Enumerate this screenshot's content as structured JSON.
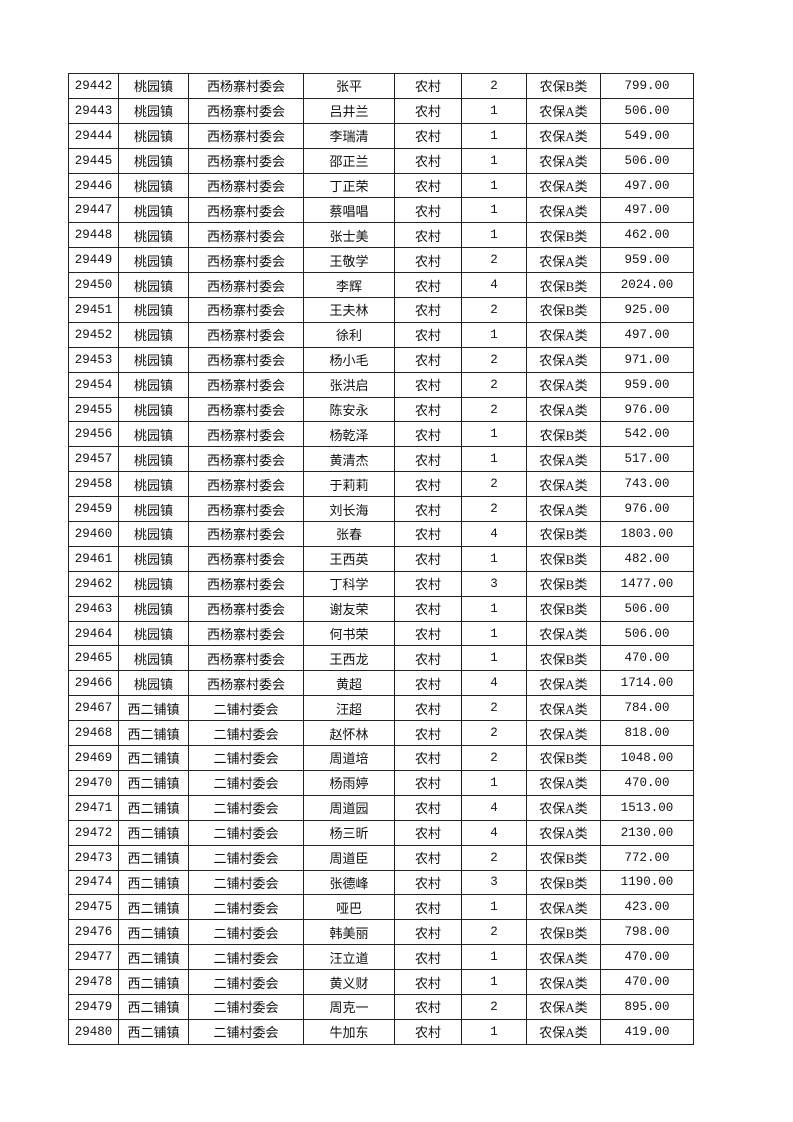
{
  "table": {
    "rows": [
      [
        "29442",
        "桃园镇",
        "西杨寨村委会",
        "张平",
        "农村",
        "2",
        "农保B类",
        "799.00"
      ],
      [
        "29443",
        "桃园镇",
        "西杨寨村委会",
        "吕井兰",
        "农村",
        "1",
        "农保A类",
        "506.00"
      ],
      [
        "29444",
        "桃园镇",
        "西杨寨村委会",
        "李瑞清",
        "农村",
        "1",
        "农保A类",
        "549.00"
      ],
      [
        "29445",
        "桃园镇",
        "西杨寨村委会",
        "邵正兰",
        "农村",
        "1",
        "农保A类",
        "506.00"
      ],
      [
        "29446",
        "桃园镇",
        "西杨寨村委会",
        "丁正荣",
        "农村",
        "1",
        "农保A类",
        "497.00"
      ],
      [
        "29447",
        "桃园镇",
        "西杨寨村委会",
        "蔡唱唱",
        "农村",
        "1",
        "农保A类",
        "497.00"
      ],
      [
        "29448",
        "桃园镇",
        "西杨寨村委会",
        "张士美",
        "农村",
        "1",
        "农保B类",
        "462.00"
      ],
      [
        "29449",
        "桃园镇",
        "西杨寨村委会",
        "王敬学",
        "农村",
        "2",
        "农保A类",
        "959.00"
      ],
      [
        "29450",
        "桃园镇",
        "西杨寨村委会",
        "李辉",
        "农村",
        "4",
        "农保B类",
        "2024.00"
      ],
      [
        "29451",
        "桃园镇",
        "西杨寨村委会",
        "王夫林",
        "农村",
        "2",
        "农保B类",
        "925.00"
      ],
      [
        "29452",
        "桃园镇",
        "西杨寨村委会",
        "徐利",
        "农村",
        "1",
        "农保A类",
        "497.00"
      ],
      [
        "29453",
        "桃园镇",
        "西杨寨村委会",
        "杨小毛",
        "农村",
        "2",
        "农保A类",
        "971.00"
      ],
      [
        "29454",
        "桃园镇",
        "西杨寨村委会",
        "张洪启",
        "农村",
        "2",
        "农保A类",
        "959.00"
      ],
      [
        "29455",
        "桃园镇",
        "西杨寨村委会",
        "陈安永",
        "农村",
        "2",
        "农保A类",
        "976.00"
      ],
      [
        "29456",
        "桃园镇",
        "西杨寨村委会",
        "杨乾泽",
        "农村",
        "1",
        "农保B类",
        "542.00"
      ],
      [
        "29457",
        "桃园镇",
        "西杨寨村委会",
        "黄清杰",
        "农村",
        "1",
        "农保A类",
        "517.00"
      ],
      [
        "29458",
        "桃园镇",
        "西杨寨村委会",
        "于莉莉",
        "农村",
        "2",
        "农保A类",
        "743.00"
      ],
      [
        "29459",
        "桃园镇",
        "西杨寨村委会",
        "刘长海",
        "农村",
        "2",
        "农保A类",
        "976.00"
      ],
      [
        "29460",
        "桃园镇",
        "西杨寨村委会",
        "张春",
        "农村",
        "4",
        "农保B类",
        "1803.00"
      ],
      [
        "29461",
        "桃园镇",
        "西杨寨村委会",
        "王西英",
        "农村",
        "1",
        "农保B类",
        "482.00"
      ],
      [
        "29462",
        "桃园镇",
        "西杨寨村委会",
        "丁科学",
        "农村",
        "3",
        "农保B类",
        "1477.00"
      ],
      [
        "29463",
        "桃园镇",
        "西杨寨村委会",
        "谢友荣",
        "农村",
        "1",
        "农保B类",
        "506.00"
      ],
      [
        "29464",
        "桃园镇",
        "西杨寨村委会",
        "何书荣",
        "农村",
        "1",
        "农保A类",
        "506.00"
      ],
      [
        "29465",
        "桃园镇",
        "西杨寨村委会",
        "王西龙",
        "农村",
        "1",
        "农保B类",
        "470.00"
      ],
      [
        "29466",
        "桃园镇",
        "西杨寨村委会",
        "黄超",
        "农村",
        "4",
        "农保A类",
        "1714.00"
      ],
      [
        "29467",
        "西二铺镇",
        "二铺村委会",
        "汪超",
        "农村",
        "2",
        "农保A类",
        "784.00"
      ],
      [
        "29468",
        "西二铺镇",
        "二铺村委会",
        "赵怀林",
        "农村",
        "2",
        "农保A类",
        "818.00"
      ],
      [
        "29469",
        "西二铺镇",
        "二铺村委会",
        "周道培",
        "农村",
        "2",
        "农保B类",
        "1048.00"
      ],
      [
        "29470",
        "西二铺镇",
        "二铺村委会",
        "杨雨婷",
        "农村",
        "1",
        "农保A类",
        "470.00"
      ],
      [
        "29471",
        "西二铺镇",
        "二铺村委会",
        "周道园",
        "农村",
        "4",
        "农保A类",
        "1513.00"
      ],
      [
        "29472",
        "西二铺镇",
        "二铺村委会",
        "杨三昕",
        "农村",
        "4",
        "农保A类",
        "2130.00"
      ],
      [
        "29473",
        "西二铺镇",
        "二铺村委会",
        "周道臣",
        "农村",
        "2",
        "农保B类",
        "772.00"
      ],
      [
        "29474",
        "西二铺镇",
        "二铺村委会",
        "张德峰",
        "农村",
        "3",
        "农保B类",
        "1190.00"
      ],
      [
        "29475",
        "西二铺镇",
        "二铺村委会",
        "哑巴",
        "农村",
        "1",
        "农保A类",
        "423.00"
      ],
      [
        "29476",
        "西二铺镇",
        "二铺村委会",
        "韩美丽",
        "农村",
        "2",
        "农保B类",
        "798.00"
      ],
      [
        "29477",
        "西二铺镇",
        "二铺村委会",
        "汪立道",
        "农村",
        "1",
        "农保A类",
        "470.00"
      ],
      [
        "29478",
        "西二铺镇",
        "二铺村委会",
        "黄义财",
        "农村",
        "1",
        "农保A类",
        "470.00"
      ],
      [
        "29479",
        "西二铺镇",
        "二铺村委会",
        "周克一",
        "农村",
        "2",
        "农保A类",
        "895.00"
      ],
      [
        "29480",
        "西二铺镇",
        "二铺村委会",
        "牛加东",
        "农村",
        "1",
        "农保A类",
        "419.00"
      ]
    ]
  }
}
